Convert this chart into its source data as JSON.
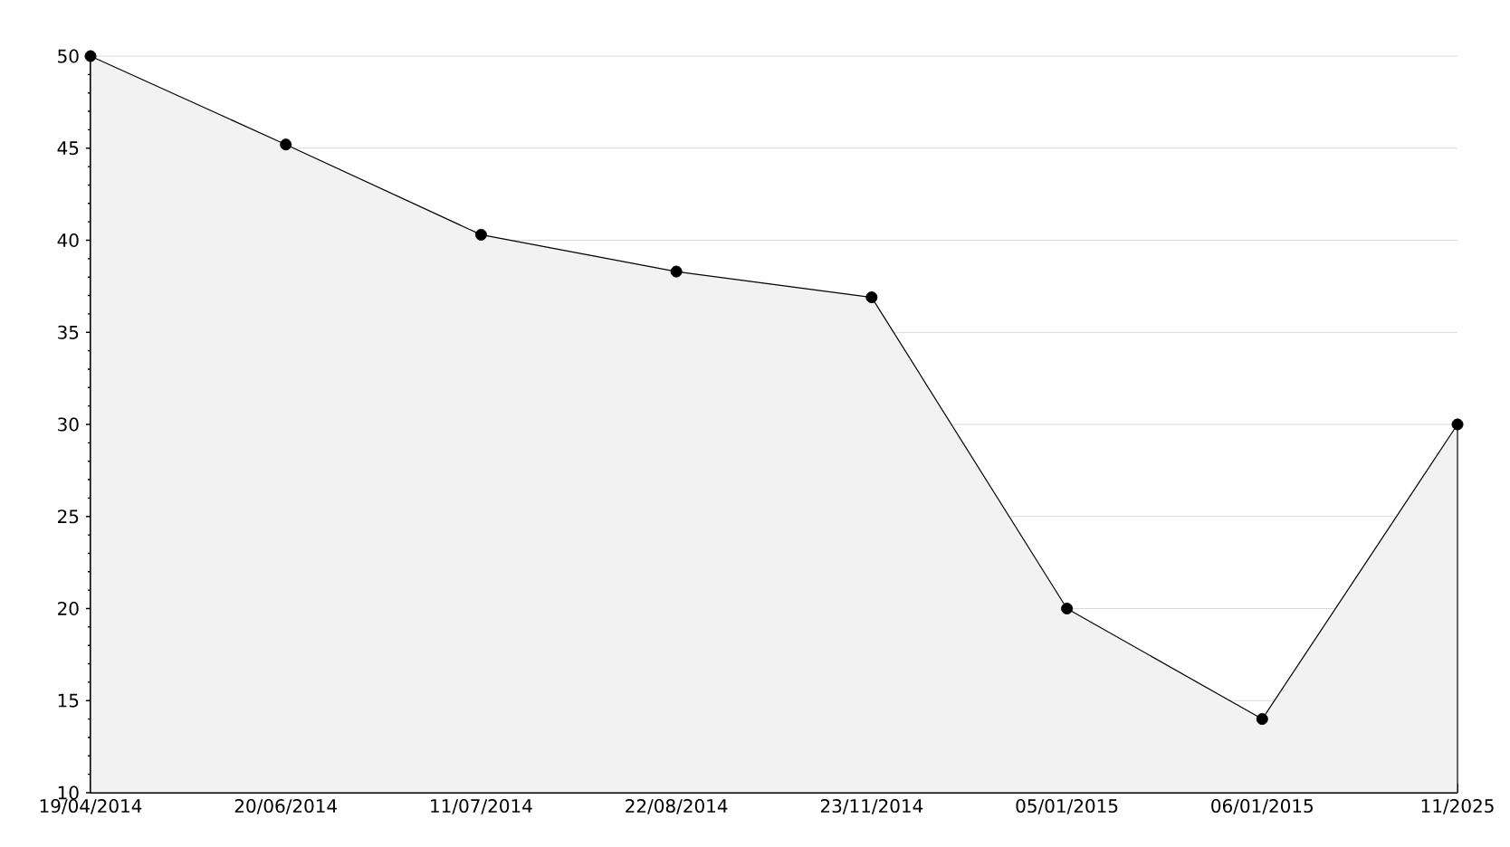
{
  "chart_data": {
    "type": "area",
    "categories": [
      "19/04/2014",
      "20/06/2014",
      "11/07/2014",
      "22/08/2014",
      "23/11/2014",
      "05/01/2015",
      "06/01/2015",
      "11/2025"
    ],
    "values": [
      50,
      45.2,
      40.3,
      38.3,
      36.9,
      20,
      14,
      30
    ],
    "color": "#f2f2f2",
    "ylim": [
      10,
      50
    ],
    "yticks": [
      10,
      15,
      20,
      25,
      30,
      35,
      40,
      45,
      50
    ],
    "grid": "y",
    "marker": "circle"
  }
}
